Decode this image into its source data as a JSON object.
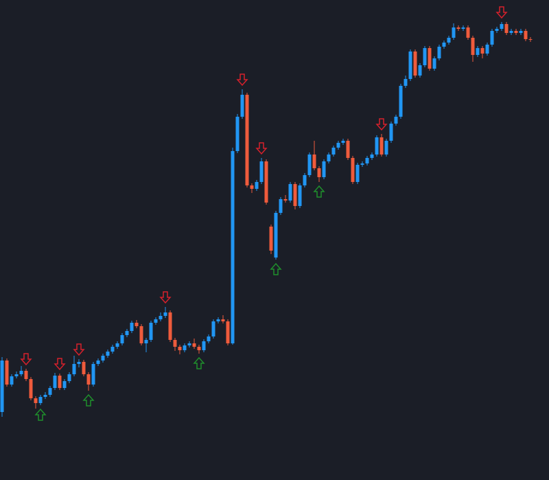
{
  "chart_data": {
    "type": "candlestick",
    "up_color": "#2196f3",
    "down_color": "#ef5b3c",
    "background": "#1b1e27",
    "ylim": [
      0,
      699
    ],
    "open": [
      99,
      174,
      139,
      151,
      154,
      159,
      147,
      119,
      112,
      121,
      124,
      134,
      152,
      134,
      144,
      154,
      169,
      172,
      154,
      139,
      169,
      174,
      181,
      187,
      194,
      199,
      211,
      217,
      229,
      224,
      199,
      204,
      229,
      234,
      239,
      244,
      204,
      194,
      189,
      196,
      199,
      194,
      189,
      202,
      209,
      231,
      234,
      231,
      199,
      479,
      529,
      561,
      429,
      424,
      434,
      464,
      369,
      324,
      389,
      409,
      407,
      431,
      399,
      429,
      444,
      474,
      454,
      441,
      464,
      474,
      484,
      491,
      494,
      469,
      434,
      459,
      461,
      469,
      474,
      499,
      474,
      494,
      519,
      529,
      574,
      584,
      624,
      589,
      604,
      629,
      599,
      614,
      631,
      637,
      644,
      659,
      657,
      659,
      644,
      619,
      629,
      621,
      634,
      654,
      657,
      664,
      651,
      654,
      651,
      654,
      642
    ],
    "high": [
      179,
      177,
      154,
      158,
      166,
      162,
      150,
      122,
      124,
      128,
      137,
      156,
      155,
      147,
      157,
      181,
      176,
      175,
      157,
      172,
      177,
      184,
      190,
      197,
      202,
      214,
      220,
      232,
      233,
      227,
      207,
      232,
      237,
      244,
      252,
      247,
      207,
      197,
      199,
      202,
      206,
      197,
      205,
      212,
      234,
      237,
      240,
      234,
      484,
      533,
      569,
      564,
      432,
      437,
      469,
      467,
      372,
      392,
      412,
      415,
      434,
      434,
      432,
      447,
      477,
      494,
      457,
      467,
      477,
      487,
      494,
      497,
      497,
      472,
      462,
      464,
      472,
      477,
      502,
      504,
      497,
      522,
      532,
      577,
      589,
      627,
      627,
      607,
      632,
      632,
      617,
      634,
      640,
      647,
      665,
      662,
      662,
      662,
      647,
      632,
      632,
      637,
      657,
      660,
      667,
      667,
      657,
      657,
      657,
      657,
      645
    ],
    "low": [
      92,
      136,
      136,
      148,
      151,
      144,
      116,
      104,
      109,
      118,
      121,
      131,
      131,
      131,
      141,
      151,
      164,
      151,
      130,
      136,
      166,
      171,
      178,
      184,
      191,
      196,
      208,
      214,
      221,
      196,
      186,
      201,
      226,
      231,
      236,
      201,
      188,
      183,
      186,
      193,
      191,
      184,
      186,
      199,
      206,
      228,
      228,
      196,
      197,
      476,
      526,
      426,
      418,
      421,
      431,
      401,
      329,
      321,
      386,
      404,
      404,
      394,
      396,
      426,
      441,
      451,
      434,
      438,
      461,
      471,
      481,
      488,
      466,
      431,
      431,
      456,
      458,
      466,
      471,
      471,
      471,
      491,
      516,
      526,
      571,
      581,
      586,
      586,
      601,
      596,
      596,
      611,
      628,
      634,
      641,
      654,
      654,
      641,
      609,
      616,
      614,
      618,
      631,
      651,
      654,
      648,
      648,
      648,
      648,
      639,
      638
    ],
    "close": [
      174,
      139,
      151,
      154,
      159,
      147,
      119,
      112,
      121,
      124,
      134,
      152,
      134,
      144,
      154,
      169,
      172,
      154,
      139,
      169,
      174,
      181,
      187,
      194,
      199,
      211,
      217,
      229,
      224,
      199,
      204,
      229,
      234,
      239,
      244,
      204,
      194,
      189,
      196,
      199,
      194,
      189,
      202,
      209,
      231,
      234,
      231,
      199,
      479,
      529,
      561,
      429,
      424,
      434,
      464,
      404,
      334,
      389,
      409,
      407,
      431,
      399,
      429,
      444,
      474,
      454,
      441,
      464,
      474,
      484,
      491,
      494,
      469,
      434,
      459,
      461,
      469,
      474,
      499,
      474,
      494,
      519,
      529,
      574,
      584,
      624,
      589,
      604,
      629,
      599,
      614,
      631,
      637,
      644,
      659,
      657,
      659,
      644,
      619,
      629,
      621,
      634,
      654,
      657,
      664,
      651,
      654,
      651,
      654,
      642,
      641
    ],
    "down_arrows": [
      5,
      12,
      16,
      34,
      50,
      54,
      79,
      104
    ],
    "down_arrow_color": "#d6202c",
    "up_arrows": [
      8,
      18,
      41,
      57,
      66
    ],
    "up_arrow_color": "#1f8f2c"
  }
}
